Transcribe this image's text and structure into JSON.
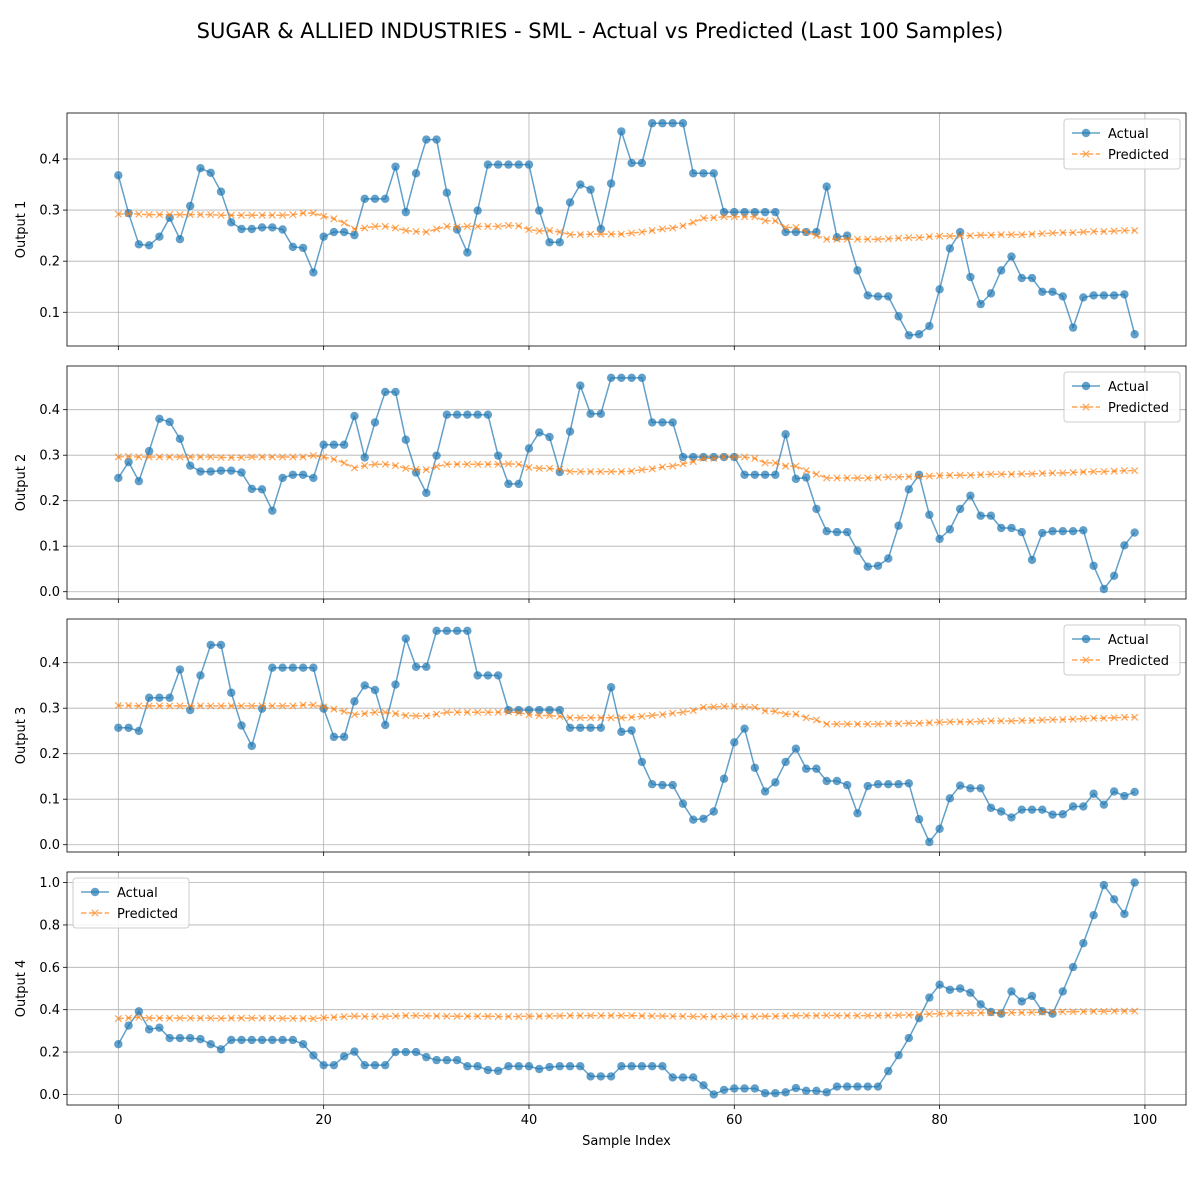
{
  "title": "SUGAR & ALLIED INDUSTRIES - SML - Actual vs Predicted (Last 100 Samples)",
  "xlabel": "Sample Index",
  "colors": {
    "actual": "#1f77b4",
    "predicted": "#ff7f0e",
    "grid": "#b0b0b0"
  },
  "chart_data": [
    {
      "type": "line",
      "ylabel": "Output 1",
      "xlim": [
        -5,
        104
      ],
      "ylim": [
        0.034,
        0.49
      ],
      "xticks": [
        0,
        20,
        40,
        60,
        80,
        100
      ],
      "yticks": [
        0.1,
        0.2,
        0.3,
        0.4
      ],
      "ytick_labels": [
        "0.1",
        "0.2",
        "0.3",
        "0.4"
      ],
      "grid": true,
      "legend_loc": "upper right",
      "series": [
        {
          "name": "Actual",
          "marker": "o",
          "values": [
            0.368,
            0.294,
            0.233,
            0.231,
            0.248,
            0.285,
            0.243,
            0.308,
            0.382,
            0.373,
            0.336,
            0.276,
            0.263,
            0.263,
            0.266,
            0.266,
            0.262,
            0.228,
            0.226,
            0.178,
            0.248,
            0.257,
            0.257,
            0.251,
            0.322,
            0.322,
            0.322,
            0.385,
            0.296,
            0.372,
            0.438,
            0.438,
            0.334,
            0.262,
            0.217,
            0.299,
            0.389,
            0.389,
            0.389,
            0.389,
            0.389,
            0.299,
            0.237,
            0.237,
            0.315,
            0.35,
            0.34,
            0.263,
            0.352,
            0.454,
            0.392,
            0.392,
            0.47,
            0.47,
            0.47,
            0.47,
            0.372,
            0.372,
            0.372,
            0.296,
            0.296,
            0.296,
            0.296,
            0.296,
            0.296,
            0.257,
            0.257,
            0.257,
            0.257,
            0.346,
            0.247,
            0.25,
            0.182,
            0.133,
            0.131,
            0.131,
            0.092,
            0.055,
            0.057,
            0.073,
            0.145,
            0.225,
            0.257,
            0.169,
            0.116,
            0.137,
            0.182,
            0.209,
            0.167,
            0.167,
            0.14,
            0.14,
            0.131,
            0.07,
            0.129,
            0.133,
            0.133,
            0.133,
            0.135,
            0.057
          ]
        },
        {
          "name": "Predicted",
          "marker": "x",
          "values": [
            0.292,
            0.293,
            0.292,
            0.291,
            0.291,
            0.291,
            0.291,
            0.291,
            0.291,
            0.291,
            0.29,
            0.29,
            0.29,
            0.29,
            0.29,
            0.29,
            0.29,
            0.291,
            0.294,
            0.294,
            0.288,
            0.283,
            0.275,
            0.263,
            0.265,
            0.268,
            0.268,
            0.265,
            0.26,
            0.258,
            0.257,
            0.263,
            0.268,
            0.267,
            0.268,
            0.268,
            0.268,
            0.268,
            0.27,
            0.269,
            0.262,
            0.259,
            0.26,
            0.257,
            0.252,
            0.252,
            0.253,
            0.253,
            0.253,
            0.253,
            0.255,
            0.257,
            0.26,
            0.263,
            0.265,
            0.269,
            0.276,
            0.284,
            0.285,
            0.287,
            0.287,
            0.287,
            0.287,
            0.279,
            0.279,
            0.266,
            0.266,
            0.257,
            0.25,
            0.243,
            0.243,
            0.243,
            0.243,
            0.243,
            0.243,
            0.244,
            0.245,
            0.246,
            0.246,
            0.248,
            0.249,
            0.249,
            0.25,
            0.25,
            0.251,
            0.251,
            0.252,
            0.252,
            0.252,
            0.253,
            0.254,
            0.255,
            0.256,
            0.256,
            0.257,
            0.258,
            0.258,
            0.259,
            0.26,
            0.26
          ]
        }
      ]
    },
    {
      "type": "line",
      "ylabel": "Output 2",
      "xlim": [
        -5,
        104
      ],
      "ylim": [
        -0.016,
        0.496
      ],
      "xticks": [
        0,
        20,
        40,
        60,
        80,
        100
      ],
      "yticks": [
        0.0,
        0.1,
        0.2,
        0.3,
        0.4
      ],
      "ytick_labels": [
        "0.0",
        "0.1",
        "0.2",
        "0.3",
        "0.4"
      ],
      "grid": true,
      "legend_loc": "upper right",
      "series": [
        {
          "name": "Actual",
          "marker": "o",
          "values": [
            0.25,
            0.285,
            0.243,
            0.309,
            0.38,
            0.373,
            0.336,
            0.277,
            0.264,
            0.264,
            0.266,
            0.266,
            0.262,
            0.226,
            0.225,
            0.178,
            0.25,
            0.257,
            0.257,
            0.25,
            0.323,
            0.323,
            0.323,
            0.386,
            0.295,
            0.372,
            0.439,
            0.439,
            0.334,
            0.262,
            0.217,
            0.299,
            0.389,
            0.389,
            0.389,
            0.389,
            0.389,
            0.299,
            0.237,
            0.237,
            0.315,
            0.35,
            0.34,
            0.263,
            0.352,
            0.453,
            0.391,
            0.391,
            0.47,
            0.47,
            0.47,
            0.47,
            0.372,
            0.372,
            0.372,
            0.296,
            0.296,
            0.296,
            0.296,
            0.296,
            0.296,
            0.257,
            0.257,
            0.257,
            0.257,
            0.346,
            0.248,
            0.251,
            0.182,
            0.133,
            0.131,
            0.131,
            0.09,
            0.055,
            0.057,
            0.073,
            0.145,
            0.225,
            0.257,
            0.169,
            0.116,
            0.137,
            0.182,
            0.211,
            0.167,
            0.167,
            0.14,
            0.14,
            0.131,
            0.07,
            0.129,
            0.133,
            0.133,
            0.133,
            0.135,
            0.057,
            0.006,
            0.035,
            0.102,
            0.13
          ]
        },
        {
          "name": "Predicted",
          "marker": "x",
          "values": [
            0.296,
            0.297,
            0.296,
            0.296,
            0.296,
            0.296,
            0.296,
            0.296,
            0.296,
            0.296,
            0.295,
            0.295,
            0.295,
            0.296,
            0.296,
            0.296,
            0.296,
            0.296,
            0.296,
            0.299,
            0.296,
            0.291,
            0.283,
            0.272,
            0.277,
            0.28,
            0.28,
            0.277,
            0.271,
            0.269,
            0.268,
            0.275,
            0.28,
            0.28,
            0.28,
            0.28,
            0.28,
            0.28,
            0.281,
            0.28,
            0.273,
            0.271,
            0.271,
            0.269,
            0.264,
            0.264,
            0.264,
            0.264,
            0.264,
            0.264,
            0.265,
            0.268,
            0.27,
            0.274,
            0.276,
            0.281,
            0.286,
            0.293,
            0.293,
            0.296,
            0.296,
            0.296,
            0.293,
            0.283,
            0.283,
            0.276,
            0.276,
            0.266,
            0.258,
            0.25,
            0.25,
            0.25,
            0.25,
            0.25,
            0.251,
            0.252,
            0.252,
            0.253,
            0.253,
            0.254,
            0.255,
            0.256,
            0.256,
            0.256,
            0.257,
            0.258,
            0.258,
            0.258,
            0.259,
            0.259,
            0.26,
            0.261,
            0.261,
            0.262,
            0.263,
            0.264,
            0.264,
            0.265,
            0.266,
            0.266
          ]
        }
      ]
    },
    {
      "type": "line",
      "ylabel": "Output 3",
      "xlim": [
        -5,
        104
      ],
      "ylim": [
        -0.016,
        0.496
      ],
      "xticks": [
        0,
        20,
        40,
        60,
        80,
        100
      ],
      "yticks": [
        0.0,
        0.1,
        0.2,
        0.3,
        0.4
      ],
      "ytick_labels": [
        "0.0",
        "0.1",
        "0.2",
        "0.3",
        "0.4"
      ],
      "grid": true,
      "legend_loc": "upper right",
      "series": [
        {
          "name": "Actual",
          "marker": "o",
          "values": [
            0.257,
            0.257,
            0.25,
            0.323,
            0.323,
            0.323,
            0.385,
            0.296,
            0.372,
            0.439,
            0.439,
            0.334,
            0.262,
            0.217,
            0.299,
            0.389,
            0.389,
            0.389,
            0.389,
            0.389,
            0.299,
            0.237,
            0.237,
            0.315,
            0.35,
            0.34,
            0.263,
            0.352,
            0.453,
            0.391,
            0.391,
            0.47,
            0.47,
            0.47,
            0.47,
            0.372,
            0.372,
            0.372,
            0.296,
            0.296,
            0.296,
            0.296,
            0.296,
            0.296,
            0.257,
            0.257,
            0.257,
            0.257,
            0.346,
            0.248,
            0.251,
            0.182,
            0.133,
            0.131,
            0.131,
            0.09,
            0.055,
            0.057,
            0.073,
            0.145,
            0.225,
            0.255,
            0.169,
            0.117,
            0.137,
            0.182,
            0.211,
            0.167,
            0.167,
            0.14,
            0.14,
            0.131,
            0.069,
            0.129,
            0.133,
            0.133,
            0.133,
            0.135,
            0.056,
            0.006,
            0.035,
            0.102,
            0.13,
            0.124,
            0.124,
            0.081,
            0.073,
            0.06,
            0.077,
            0.077,
            0.077,
            0.066,
            0.067,
            0.084,
            0.084,
            0.112,
            0.088,
            0.117,
            0.107,
            0.116
          ]
        },
        {
          "name": "Predicted",
          "marker": "x",
          "values": [
            0.306,
            0.306,
            0.305,
            0.305,
            0.305,
            0.305,
            0.305,
            0.305,
            0.305,
            0.305,
            0.305,
            0.305,
            0.305,
            0.305,
            0.305,
            0.305,
            0.305,
            0.305,
            0.307,
            0.307,
            0.303,
            0.298,
            0.293,
            0.286,
            0.288,
            0.291,
            0.291,
            0.288,
            0.284,
            0.283,
            0.283,
            0.287,
            0.291,
            0.291,
            0.291,
            0.291,
            0.291,
            0.291,
            0.292,
            0.29,
            0.286,
            0.284,
            0.284,
            0.282,
            0.279,
            0.279,
            0.279,
            0.279,
            0.279,
            0.279,
            0.28,
            0.282,
            0.284,
            0.286,
            0.289,
            0.291,
            0.295,
            0.302,
            0.303,
            0.304,
            0.304,
            0.303,
            0.302,
            0.294,
            0.293,
            0.287,
            0.287,
            0.279,
            0.274,
            0.265,
            0.265,
            0.265,
            0.265,
            0.265,
            0.265,
            0.266,
            0.266,
            0.267,
            0.267,
            0.268,
            0.269,
            0.27,
            0.27,
            0.27,
            0.271,
            0.272,
            0.272,
            0.272,
            0.273,
            0.273,
            0.274,
            0.275,
            0.275,
            0.276,
            0.277,
            0.278,
            0.278,
            0.279,
            0.28,
            0.28
          ]
        }
      ]
    },
    {
      "type": "line",
      "ylabel": "Output 4",
      "xlim": [
        -5,
        104
      ],
      "ylim": [
        -0.05,
        1.05
      ],
      "xticks": [
        0,
        20,
        40,
        60,
        80,
        100
      ],
      "yticks": [
        0.0,
        0.2,
        0.4,
        0.6,
        0.8,
        1.0
      ],
      "ytick_labels": [
        "0.0",
        "0.2",
        "0.4",
        "0.6",
        "0.8",
        "1.0"
      ],
      "xtick_labels": [
        "0",
        "20",
        "40",
        "60",
        "80",
        "100"
      ],
      "grid": true,
      "legend_loc": "upper left",
      "series": [
        {
          "name": "Actual",
          "marker": "o",
          "values": [
            0.237,
            0.325,
            0.392,
            0.307,
            0.315,
            0.266,
            0.266,
            0.266,
            0.261,
            0.237,
            0.213,
            0.257,
            0.257,
            0.257,
            0.257,
            0.257,
            0.257,
            0.257,
            0.237,
            0.184,
            0.138,
            0.138,
            0.18,
            0.202,
            0.138,
            0.138,
            0.138,
            0.2,
            0.2,
            0.2,
            0.176,
            0.162,
            0.162,
            0.162,
            0.133,
            0.133,
            0.115,
            0.111,
            0.133,
            0.133,
            0.133,
            0.12,
            0.129,
            0.133,
            0.133,
            0.133,
            0.085,
            0.085,
            0.085,
            0.133,
            0.133,
            0.133,
            0.133,
            0.133,
            0.08,
            0.08,
            0.08,
            0.043,
            0.0,
            0.021,
            0.028,
            0.028,
            0.028,
            0.006,
            0.006,
            0.01,
            0.03,
            0.017,
            0.017,
            0.01,
            0.037,
            0.037,
            0.037,
            0.037,
            0.037,
            0.11,
            0.185,
            0.266,
            0.36,
            0.457,
            0.518,
            0.494,
            0.5,
            0.48,
            0.425,
            0.389,
            0.381,
            0.486,
            0.439,
            0.465,
            0.393,
            0.381,
            0.486,
            0.601,
            0.714,
            0.846,
            0.988,
            0.921,
            0.852,
            1.0
          ]
        },
        {
          "name": "Predicted",
          "marker": "x",
          "values": [
            0.358,
            0.361,
            0.364,
            0.36,
            0.36,
            0.36,
            0.36,
            0.36,
            0.36,
            0.36,
            0.359,
            0.36,
            0.36,
            0.36,
            0.36,
            0.36,
            0.359,
            0.359,
            0.359,
            0.358,
            0.362,
            0.364,
            0.367,
            0.37,
            0.368,
            0.368,
            0.368,
            0.37,
            0.372,
            0.372,
            0.371,
            0.37,
            0.369,
            0.369,
            0.369,
            0.369,
            0.369,
            0.368,
            0.368,
            0.368,
            0.369,
            0.369,
            0.37,
            0.371,
            0.372,
            0.372,
            0.372,
            0.372,
            0.372,
            0.372,
            0.372,
            0.371,
            0.37,
            0.37,
            0.369,
            0.369,
            0.368,
            0.367,
            0.367,
            0.368,
            0.369,
            0.368,
            0.368,
            0.369,
            0.369,
            0.371,
            0.372,
            0.372,
            0.372,
            0.373,
            0.372,
            0.372,
            0.372,
            0.372,
            0.372,
            0.373,
            0.374,
            0.375,
            0.377,
            0.379,
            0.381,
            0.382,
            0.383,
            0.384,
            0.385,
            0.385,
            0.385,
            0.386,
            0.386,
            0.387,
            0.388,
            0.389,
            0.39,
            0.39,
            0.391,
            0.392,
            0.392,
            0.393,
            0.393,
            0.393
          ]
        }
      ]
    }
  ]
}
